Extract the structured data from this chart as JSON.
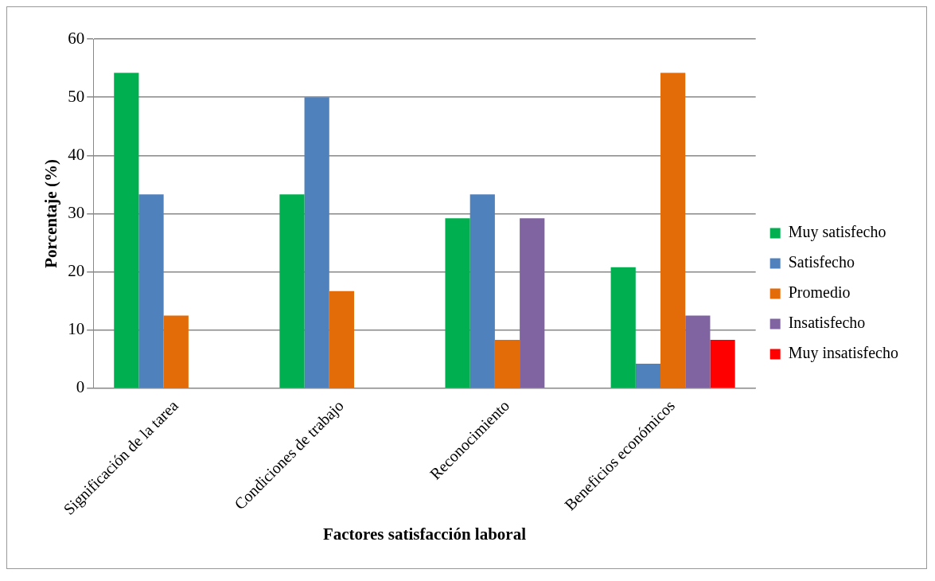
{
  "chart_data": {
    "type": "bar",
    "xlabel": "Factores satisfacción laboral",
    "ylabel": "Porcentaje (%)",
    "categories": [
      "Significación de la tarea",
      "Condiciones de trabajo",
      "Reconocimiento",
      "Beneficios económicos"
    ],
    "series": [
      {
        "name": "Muy satisfecho",
        "color": "#00b050",
        "values": [
          54.2,
          33.3,
          29.2,
          20.8
        ]
      },
      {
        "name": "Satisfecho",
        "color": "#4f81bd",
        "values": [
          33.3,
          50,
          33.3,
          4.2
        ]
      },
      {
        "name": "Promedio",
        "color": "#e36c09",
        "values": [
          12.5,
          16.7,
          8.3,
          54.2
        ]
      },
      {
        "name": "Insatisfecho",
        "color": "#8064a2",
        "values": [
          0,
          0,
          29.2,
          12.5
        ]
      },
      {
        "name": "Muy insatisfecho",
        "color": "#ff0000",
        "values": [
          0,
          0,
          0,
          8.3
        ]
      }
    ],
    "ylim": [
      0,
      60
    ],
    "yticks": [
      0,
      10,
      20,
      30,
      40,
      50,
      60
    ],
    "grid": "y",
    "legend": "right"
  }
}
